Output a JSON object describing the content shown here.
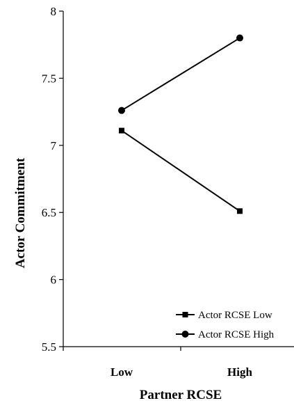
{
  "chart_data": {
    "type": "line",
    "categories": [
      "Low",
      "High"
    ],
    "series": [
      {
        "name": "Actor RCSE Low",
        "values": [
          7.11,
          6.51
        ],
        "marker": "square"
      },
      {
        "name": "Actor RCSE High",
        "values": [
          7.26,
          7.8
        ],
        "marker": "circle"
      }
    ],
    "xlabel": "Partner RCSE",
    "ylabel": "Actor Commitment",
    "ylim": [
      5.5,
      8
    ],
    "yticks": [
      "5.5",
      "6",
      "6.5",
      "7",
      "7.5",
      "8"
    ],
    "grid": false,
    "legend_position": "bottom-right",
    "colors": {
      "line": "#000000"
    }
  }
}
